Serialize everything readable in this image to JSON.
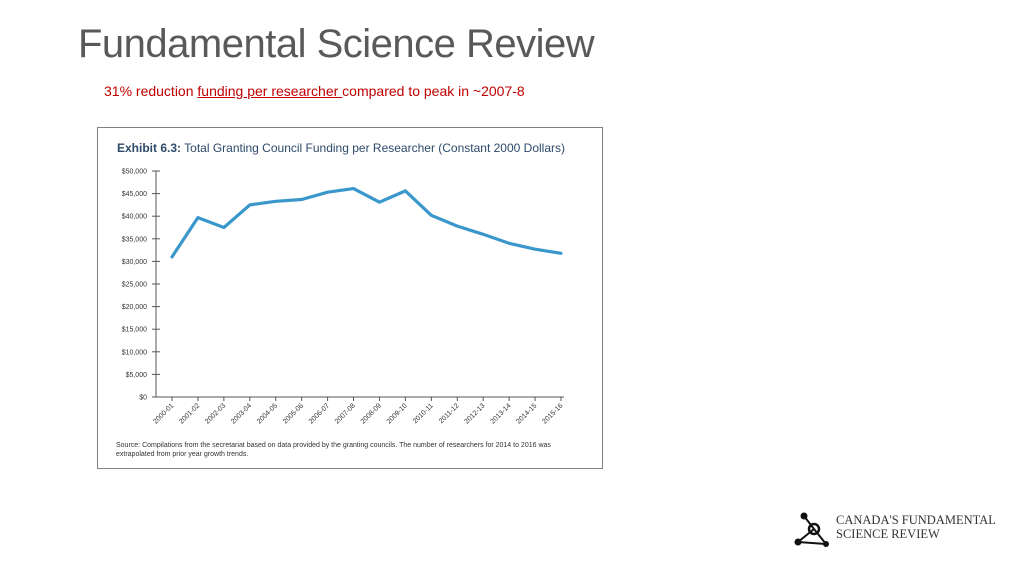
{
  "slide": {
    "title": "Fundamental Science Review",
    "subtitle_part1": "31% reduction ",
    "subtitle_underlined": "funding per researcher ",
    "subtitle_part2": "compared to peak in ~2007-8"
  },
  "exhibit": {
    "label": "Exhibit 6.3:",
    "caption": "Total Granting Council Funding per Researcher (Constant 2000 Dollars)",
    "source": "Source: Compilations from the secretariat based on data provided by the granting councils. The number of researchers for 2014 to 2016 was extrapolated from prior year growth trends."
  },
  "logo": {
    "line1": "CANADA'S FUNDAMENTAL",
    "line2": "SCIENCE REVIEW",
    "icon": "network-nodes-icon"
  },
  "colors": {
    "line": "#3a97cc",
    "title_gray": "#595959",
    "subtitle_red": "#c00000",
    "exhibit_blue": "#2d4a6b"
  },
  "chart_data": {
    "type": "line",
    "categories": [
      "2000-01",
      "2001-02",
      "2002-03",
      "2003-04",
      "2004-05",
      "2005-06",
      "2006-07",
      "2007-08",
      "2008-09",
      "2009-10",
      "2010-11",
      "2011-12",
      "2012-13",
      "2013-14",
      "2014-15",
      "2015-16"
    ],
    "values": [
      31000,
      39700,
      37500,
      42500,
      43300,
      43700,
      45300,
      46100,
      43100,
      45600,
      40200,
      37800,
      36000,
      34000,
      32700,
      31800
    ],
    "title": "Exhibit 6.3: Total Granting Council Funding per Researcher (Constant 2000 Dollars)",
    "xlabel": "",
    "ylabel": "",
    "ylim": [
      0,
      50000
    ],
    "yticks": [
      "$0",
      "$5,000",
      "$10,000",
      "$15,000",
      "$20,000",
      "$25,000",
      "$30,000",
      "$35,000",
      "$40,000",
      "$45,000",
      "$50,000"
    ],
    "grid": false,
    "legend": "none"
  }
}
